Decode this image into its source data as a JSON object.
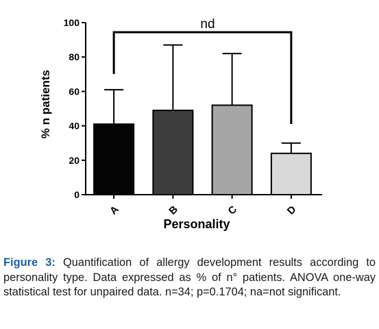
{
  "chart_data": {
    "type": "bar",
    "categories": [
      "A",
      "B",
      "C",
      "D"
    ],
    "values": [
      41,
      49,
      52,
      24
    ],
    "error_upper": [
      61,
      87,
      82,
      30
    ],
    "colors": [
      "#050505",
      "#3d3d3d",
      "#a6a6a6",
      "#d9d9d9"
    ],
    "xlabel": "Personality",
    "ylabel": "% n patients",
    "ylim": [
      0,
      100
    ],
    "yticks": [
      0,
      20,
      40,
      60,
      80,
      100
    ],
    "annotation": "nd",
    "comparison": [
      "A",
      "D"
    ]
  },
  "caption": {
    "label": "Figure",
    "number": "3:",
    "text": "Quantification of allergy development results according to personality type. Data expressed as % of n° patients. ANOVA one-way statistical test for unpaired data. n=34; p=0.1704; na=not significant."
  }
}
